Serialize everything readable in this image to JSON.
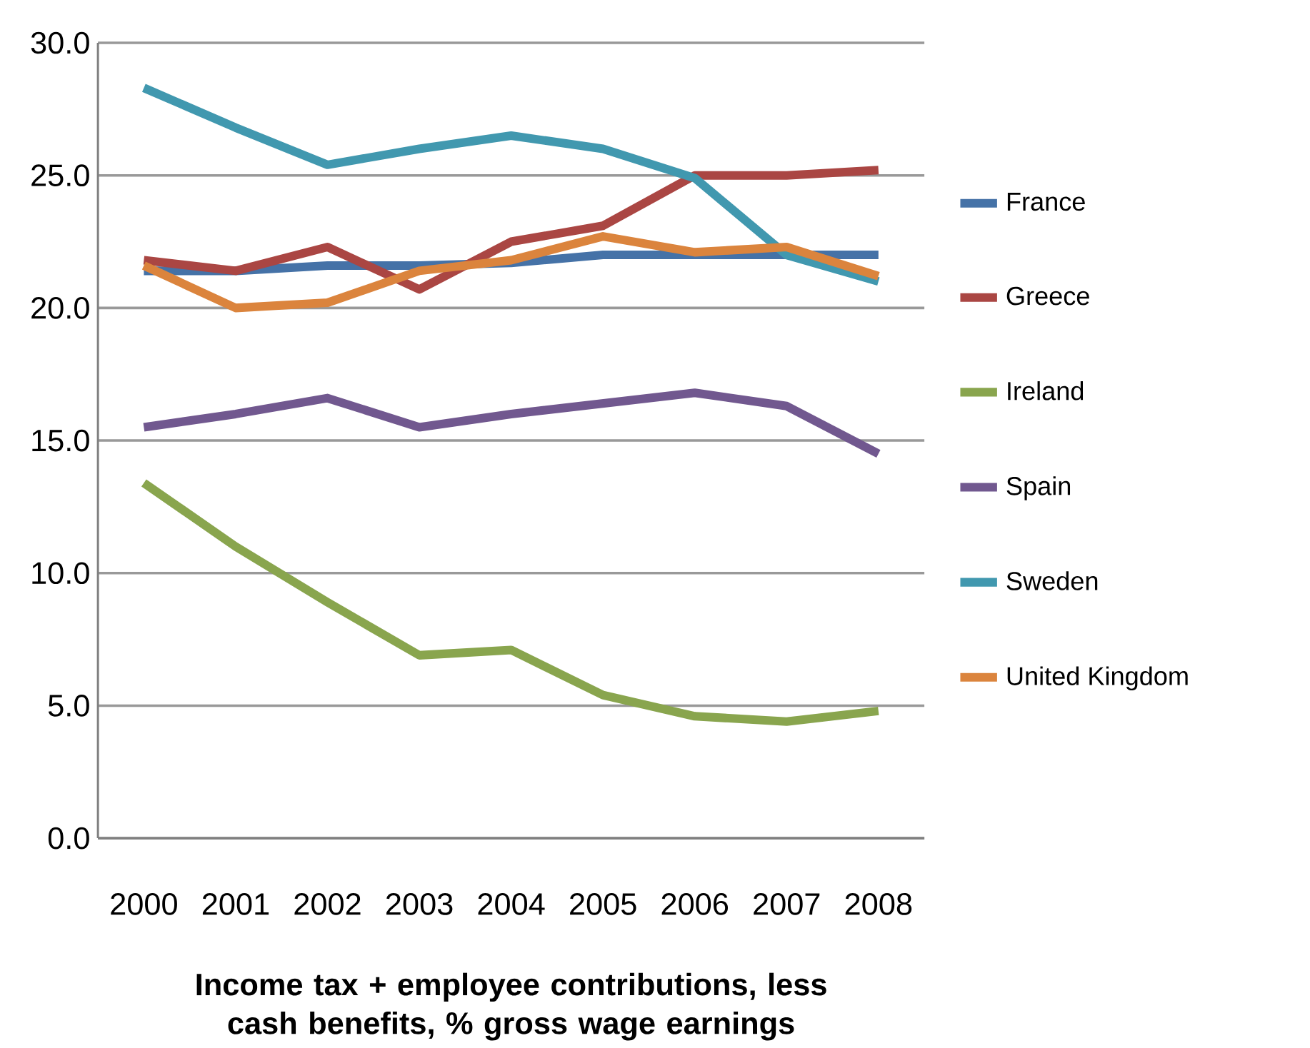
{
  "chart_data": {
    "type": "line",
    "xlabel": "Income tax + employee contributions, less cash  benefits, % gross wage earnings",
    "categories": [
      "2000",
      "2001",
      "2002",
      "2003",
      "2004",
      "2005",
      "2006",
      "2007",
      "2008"
    ],
    "series": [
      {
        "name": "France",
        "color": "#4572a7",
        "values": [
          21.4,
          21.4,
          21.6,
          21.6,
          21.7,
          22.0,
          22.0,
          22.0,
          22.0
        ]
      },
      {
        "name": "Greece",
        "color": "#aa4643",
        "values": [
          21.8,
          21.4,
          22.3,
          20.7,
          22.5,
          23.1,
          25.0,
          25.0,
          25.2
        ]
      },
      {
        "name": "Ireland",
        "color": "#89a54e",
        "values": [
          13.4,
          11.0,
          8.9,
          6.9,
          7.1,
          5.4,
          4.6,
          4.4,
          4.8
        ]
      },
      {
        "name": "Spain",
        "color": "#71588f",
        "values": [
          15.5,
          16.0,
          16.6,
          15.5,
          16.0,
          16.4,
          16.8,
          16.3,
          14.5
        ]
      },
      {
        "name": "Sweden",
        "color": "#4198af",
        "values": [
          28.3,
          26.8,
          25.4,
          26.0,
          26.5,
          26.0,
          24.9,
          22.0,
          21.0
        ]
      },
      {
        "name": "United Kingdom",
        "color": "#db843d",
        "values": [
          21.6,
          20.0,
          20.2,
          21.4,
          21.8,
          22.7,
          22.1,
          22.3,
          21.2
        ]
      }
    ],
    "ylim": [
      0,
      30
    ],
    "yticks": [
      {
        "value": 0,
        "label": "0.0"
      },
      {
        "value": 5,
        "label": "5.0"
      },
      {
        "value": 10,
        "label": "10.0"
      },
      {
        "value": 15,
        "label": "15.0"
      },
      {
        "value": 20,
        "label": "20.0"
      },
      {
        "value": 25,
        "label": "25.0"
      },
      {
        "value": 30,
        "label": "30.0"
      }
    ],
    "grid": "y",
    "legend": "right",
    "marker": "none",
    "line_style": "solid"
  }
}
